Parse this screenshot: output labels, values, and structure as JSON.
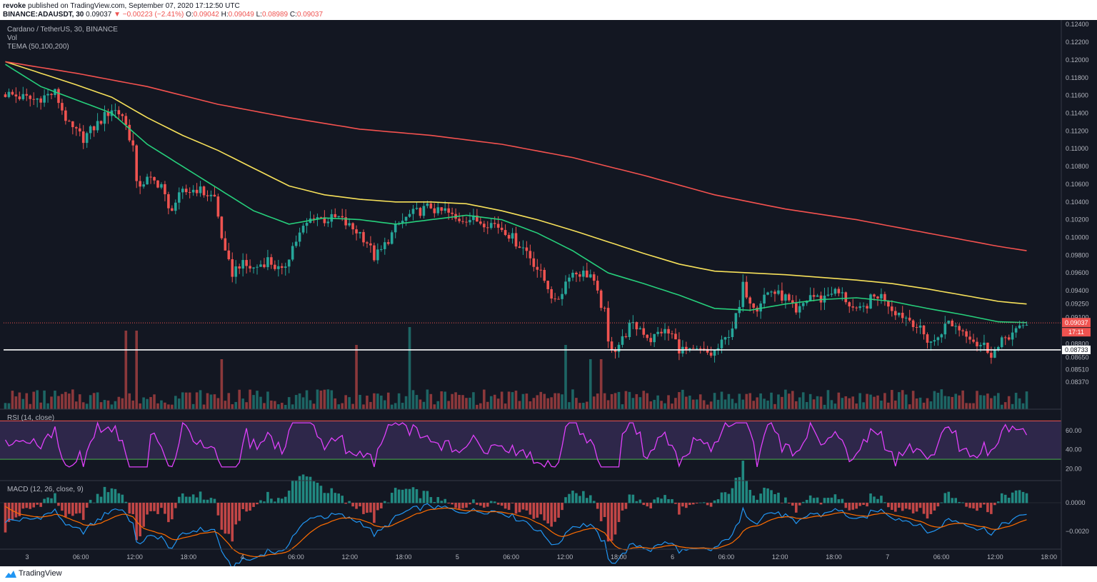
{
  "header": {
    "publisher": "revoke",
    "published_text": "published on TradingView.com, September 07, 2020 17:12:50 UTC",
    "symbol_line": "BINANCE:ADAUSDT, 30",
    "last": "0.09037",
    "change": "▼ −0.00223 (−2.41%)",
    "o_label": "O:",
    "o": "0.09042",
    "h_label": "H:",
    "h": "0.09049",
    "l_label": "L:",
    "l": "0.08989",
    "c_label": "C:",
    "c": "0.09037"
  },
  "legend": {
    "pair": "Cardano / TetherUS, 30, BINANCE",
    "vol": "Vol",
    "tema": "TEMA (50,100,200)"
  },
  "footer": {
    "brand": "TradingView"
  },
  "colors": {
    "background": "#131722",
    "up": "#26a69a",
    "down": "#ef5350",
    "tema50": "#26d07c",
    "tema100": "#f7e15a",
    "tema200": "#f5524f",
    "rsi": "#e040fb",
    "macd": "#2196f3",
    "signal": "#ff6d00"
  },
  "chart_data": [
    {
      "type": "candlestick",
      "title": "Cardano / TetherUS, 30, BINANCE",
      "timeframe": "30",
      "x_ticks": [
        "3",
        "06:00",
        "12:00",
        "18:00",
        "4",
        "06:00",
        "12:00",
        "18:00",
        "5",
        "06:00",
        "12:00",
        "18:00",
        "6",
        "06:00",
        "12:00",
        "18:00",
        "7",
        "06:00",
        "12:00",
        "18:00"
      ],
      "y_ticks": [
        "0.12400",
        "0.12200",
        "0.12000",
        "0.11800",
        "0.11600",
        "0.11400",
        "0.11200",
        "0.11000",
        "0.10800",
        "0.10600",
        "0.10400",
        "0.10200",
        "0.10000",
        "0.09800",
        "0.09600",
        "0.09400",
        "0.09250",
        "0.09100",
        "0.08800",
        "0.08650",
        "0.08510",
        "0.08370"
      ],
      "ylim": [
        0.0825,
        0.1245
      ],
      "last_price": "0.09037",
      "countdown": "17:11",
      "support_line": "0.08733",
      "close_path": [
        [
          0,
          0.1162
        ],
        [
          8,
          0.1155
        ],
        [
          14,
          0.1163
        ],
        [
          18,
          0.1125
        ],
        [
          22,
          0.1112
        ],
        [
          26,
          0.1128
        ],
        [
          30,
          0.1145
        ],
        [
          33,
          0.1138
        ],
        [
          36,
          0.1102
        ],
        [
          37,
          0.1058
        ],
        [
          40,
          0.1065
        ],
        [
          44,
          0.106
        ],
        [
          46,
          0.103
        ],
        [
          48,
          0.104
        ],
        [
          50,
          0.105
        ],
        [
          54,
          0.1055
        ],
        [
          56,
          0.105
        ],
        [
          59,
          0.1045
        ],
        [
          62,
          0.098
        ],
        [
          64,
          0.096
        ],
        [
          66,
          0.097
        ],
        [
          70,
          0.0965
        ],
        [
          74,
          0.0975
        ],
        [
          78,
          0.096
        ],
        [
          81,
          0.099
        ],
        [
          84,
          0.101
        ],
        [
          87,
          0.1025
        ],
        [
          90,
          0.102
        ],
        [
          94,
          0.1022
        ],
        [
          97,
          0.1012
        ],
        [
          100,
          0.1005
        ],
        [
          102,
          0.0995
        ],
        [
          104,
          0.0978
        ],
        [
          106,
          0.0985
        ],
        [
          108,
          0.0998
        ],
        [
          111,
          0.1015
        ],
        [
          114,
          0.1025
        ],
        [
          117,
          0.103
        ],
        [
          120,
          0.1035
        ],
        [
          122,
          0.1028
        ],
        [
          124,
          0.103
        ],
        [
          127,
          0.102
        ],
        [
          130,
          0.1022
        ],
        [
          134,
          0.1018
        ],
        [
          138,
          0.1015
        ],
        [
          141,
          0.1008
        ],
        [
          144,
          0.0995
        ],
        [
          147,
          0.0985
        ],
        [
          150,
          0.0965
        ],
        [
          153,
          0.0945
        ],
        [
          155,
          0.0925
        ],
        [
          157,
          0.094
        ],
        [
          159,
          0.096
        ],
        [
          162,
          0.096
        ],
        [
          165,
          0.0958
        ],
        [
          167,
          0.0935
        ],
        [
          169,
          0.0915
        ],
        [
          170,
          0.088
        ],
        [
          172,
          0.0875
        ],
        [
          174,
          0.0885
        ],
        [
          176,
          0.09
        ],
        [
          179,
          0.0898
        ],
        [
          182,
          0.0885
        ],
        [
          185,
          0.0895
        ],
        [
          188,
          0.089
        ],
        [
          190,
          0.0875
        ],
        [
          193,
          0.087
        ],
        [
          196,
          0.0872
        ],
        [
          199,
          0.0868
        ],
        [
          201,
          0.0875
        ],
        [
          203,
          0.0885
        ],
        [
          205,
          0.09
        ],
        [
          207,
          0.092
        ],
        [
          208,
          0.0945
        ],
        [
          210,
          0.093
        ],
        [
          212,
          0.0922
        ],
        [
          214,
          0.0935
        ],
        [
          216,
          0.094
        ],
        [
          218,
          0.0935
        ],
        [
          220,
          0.0932
        ],
        [
          222,
          0.092
        ],
        [
          223,
          0.0912
        ],
        [
          225,
          0.0925
        ],
        [
          227,
          0.0935
        ],
        [
          230,
          0.093
        ],
        [
          233,
          0.094
        ],
        [
          236,
          0.0935
        ],
        [
          238,
          0.0925
        ],
        [
          240,
          0.0915
        ],
        [
          242,
          0.092
        ],
        [
          244,
          0.093
        ],
        [
          246,
          0.0935
        ],
        [
          248,
          0.0932
        ],
        [
          250,
          0.092
        ],
        [
          252,
          0.0915
        ],
        [
          254,
          0.091
        ],
        [
          256,
          0.0905
        ],
        [
          258,
          0.0895
        ],
        [
          260,
          0.0885
        ],
        [
          262,
          0.0882
        ],
        [
          264,
          0.0895
        ],
        [
          266,
          0.0905
        ],
        [
          268,
          0.09
        ],
        [
          270,
          0.0895
        ],
        [
          272,
          0.089
        ],
        [
          274,
          0.088
        ],
        [
          276,
          0.0878
        ],
        [
          278,
          0.087
        ],
        [
          280,
          0.0875
        ],
        [
          282,
          0.0888
        ],
        [
          284,
          0.0892
        ],
        [
          286,
          0.0896
        ],
        [
          288,
          0.0904
        ]
      ],
      "ema_lines": [
        {
          "name": "TEMA 50",
          "color": "#26d07c",
          "points": [
            [
              0,
              0.1195
            ],
            [
              10,
              0.117
            ],
            [
              20,
              0.1155
            ],
            [
              30,
              0.114
            ],
            [
              40,
              0.1105
            ],
            [
              50,
              0.108
            ],
            [
              60,
              0.1055
            ],
            [
              70,
              0.103
            ],
            [
              80,
              0.1015
            ],
            [
              90,
              0.1022
            ],
            [
              100,
              0.102
            ],
            [
              110,
              0.1015
            ],
            [
              120,
              0.102
            ],
            [
              130,
              0.1025
            ],
            [
              140,
              0.102
            ],
            [
              150,
              0.1005
            ],
            [
              160,
              0.0985
            ],
            [
              170,
              0.096
            ],
            [
              180,
              0.0948
            ],
            [
              190,
              0.0935
            ],
            [
              200,
              0.092
            ],
            [
              210,
              0.0918
            ],
            [
              220,
              0.0925
            ],
            [
              230,
              0.093
            ],
            [
              240,
              0.0932
            ],
            [
              250,
              0.0928
            ],
            [
              260,
              0.092
            ],
            [
              270,
              0.0913
            ],
            [
              280,
              0.0905
            ],
            [
              288,
              0.0904
            ]
          ]
        },
        {
          "name": "TEMA 100",
          "color": "#f7e15a",
          "points": [
            [
              0,
              0.1198
            ],
            [
              10,
              0.1185
            ],
            [
              20,
              0.1172
            ],
            [
              30,
              0.1158
            ],
            [
              40,
              0.1135
            ],
            [
              50,
              0.1115
            ],
            [
              60,
              0.1098
            ],
            [
              70,
              0.1078
            ],
            [
              80,
              0.1058
            ],
            [
              90,
              0.1048
            ],
            [
              100,
              0.1043
            ],
            [
              110,
              0.104
            ],
            [
              120,
              0.104
            ],
            [
              130,
              0.1038
            ],
            [
              140,
              0.103
            ],
            [
              150,
              0.102
            ],
            [
              160,
              0.1008
            ],
            [
              170,
              0.0995
            ],
            [
              180,
              0.0982
            ],
            [
              190,
              0.097
            ],
            [
              200,
              0.0962
            ],
            [
              210,
              0.096
            ],
            [
              220,
              0.0958
            ],
            [
              230,
              0.0955
            ],
            [
              240,
              0.0952
            ],
            [
              250,
              0.0948
            ],
            [
              260,
              0.0942
            ],
            [
              270,
              0.0935
            ],
            [
              280,
              0.0928
            ],
            [
              288,
              0.0925
            ]
          ]
        },
        {
          "name": "TEMA 200",
          "color": "#f5524f",
          "points": [
            [
              0,
              0.1198
            ],
            [
              20,
              0.1185
            ],
            [
              40,
              0.117
            ],
            [
              60,
              0.115
            ],
            [
              80,
              0.1135
            ],
            [
              100,
              0.1122
            ],
            [
              120,
              0.1115
            ],
            [
              140,
              0.1105
            ],
            [
              160,
              0.109
            ],
            [
              180,
              0.107
            ],
            [
              200,
              0.1048
            ],
            [
              220,
              0.1032
            ],
            [
              240,
              0.102
            ],
            [
              260,
              0.1005
            ],
            [
              280,
              0.099
            ],
            [
              288,
              0.0985
            ]
          ]
        }
      ]
    },
    {
      "type": "bar",
      "title": "Vol"
    },
    {
      "type": "line",
      "title": "RSI (14, close)",
      "y_ticks": [
        "60.00",
        "40.00",
        "20.00"
      ],
      "bands": [
        70,
        30
      ]
    },
    {
      "type": "line",
      "title": "MACD (12, 26, close, 9)",
      "y_ticks": [
        "0.0000",
        "−0.0020"
      ]
    }
  ]
}
